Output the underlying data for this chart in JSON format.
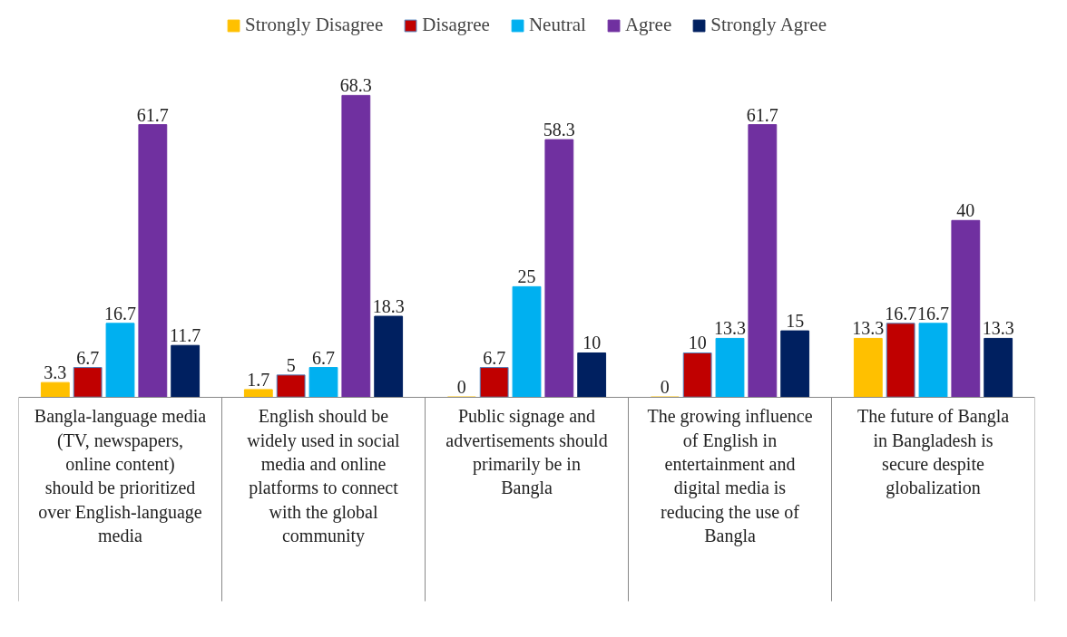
{
  "chart_data": {
    "type": "bar",
    "data_labels": true,
    "legend": "top",
    "categories": [
      "Bangla-language media (TV, newspapers, online content) should be prioritized over English-language media",
      "English should be widely used in social media and online platforms to connect with the global community",
      "Public signage and advertisements should primarily be in Bangla",
      "The growing influence of English in entertainment and digital media is reducing the use of Bangla",
      "The future of Bangla in Bangladesh is secure despite globalization"
    ],
    "series": [
      {
        "name": "Strongly Disagree",
        "color": "#ffc000",
        "values": [
          3.3,
          1.7,
          0,
          0,
          13.3
        ]
      },
      {
        "name": "Disagree",
        "color": "#c00000",
        "values": [
          6.7,
          5,
          6.7,
          10,
          16.7
        ]
      },
      {
        "name": "Neutral",
        "color": "#00b0f0",
        "values": [
          16.7,
          6.7,
          25,
          13.3,
          16.7
        ]
      },
      {
        "name": "Agree",
        "color": "#7030a0",
        "values": [
          61.7,
          68.3,
          58.3,
          61.7,
          40
        ]
      },
      {
        "name": "Strongly Agree",
        "color": "#002060",
        "values": [
          11.7,
          18.3,
          10,
          15,
          13.3
        ]
      }
    ]
  }
}
